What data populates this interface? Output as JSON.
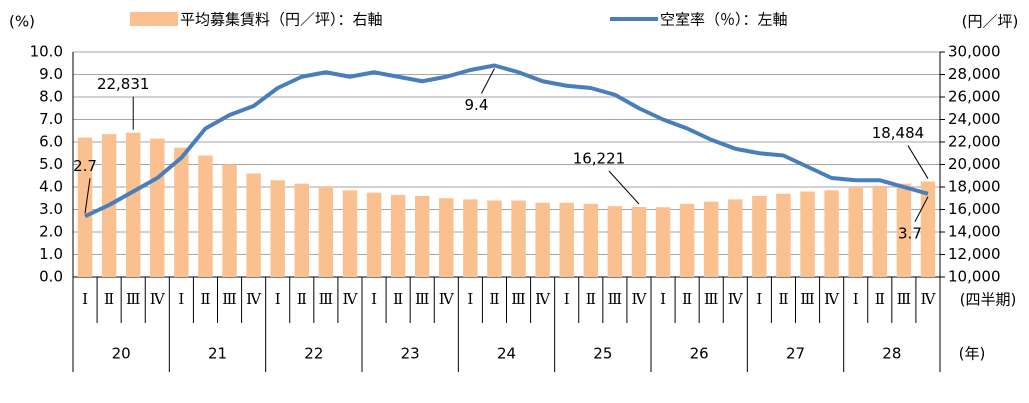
{
  "chart_data": {
    "type": "bar_line_combo",
    "legend": "top",
    "grid": true,
    "y_axis_label": "(%)",
    "y2_axis_label": "(円／坪)",
    "x_axis_label": "(四半期)",
    "group_axis_label": "(年)",
    "categories": [
      "Ⅰ",
      "Ⅱ",
      "Ⅲ",
      "Ⅳ",
      "Ⅰ",
      "Ⅱ",
      "Ⅲ",
      "Ⅳ",
      "Ⅰ",
      "Ⅱ",
      "Ⅲ",
      "Ⅳ",
      "Ⅰ",
      "Ⅱ",
      "Ⅲ",
      "Ⅳ",
      "Ⅰ",
      "Ⅱ",
      "Ⅲ",
      "Ⅳ",
      "Ⅰ",
      "Ⅱ",
      "Ⅲ",
      "Ⅳ",
      "Ⅰ",
      "Ⅱ",
      "Ⅲ",
      "Ⅳ",
      "Ⅰ",
      "Ⅱ",
      "Ⅲ",
      "Ⅳ",
      "Ⅰ",
      "Ⅱ",
      "Ⅲ",
      "Ⅳ"
    ],
    "groups": [
      "20",
      "21",
      "22",
      "23",
      "24",
      "25",
      "26",
      "27",
      "28"
    ],
    "ylim": [
      0,
      10
    ],
    "yticks": [
      {
        "value": 0,
        "label": "0.0"
      },
      {
        "value": 1,
        "label": "1.0"
      },
      {
        "value": 2,
        "label": "2.0"
      },
      {
        "value": 3,
        "label": "3.0"
      },
      {
        "value": 4,
        "label": "4.0"
      },
      {
        "value": 5,
        "label": "5.0"
      },
      {
        "value": 6,
        "label": "6.0"
      },
      {
        "value": 7,
        "label": "7.0"
      },
      {
        "value": 8,
        "label": "8.0"
      },
      {
        "value": 9,
        "label": "9.0"
      },
      {
        "value": 10,
        "label": "10.0"
      }
    ],
    "y2lim": [
      10000,
      30000
    ],
    "y2ticks": [
      {
        "value": 10000,
        "label": "10,000"
      },
      {
        "value": 12000,
        "label": "12,000"
      },
      {
        "value": 14000,
        "label": "14,000"
      },
      {
        "value": 16000,
        "label": "16,000"
      },
      {
        "value": 18000,
        "label": "18,000"
      },
      {
        "value": 20000,
        "label": "20,000"
      },
      {
        "value": 22000,
        "label": "22,000"
      },
      {
        "value": 24000,
        "label": "24,000"
      },
      {
        "value": 26000,
        "label": "26,000"
      },
      {
        "value": 28000,
        "label": "28,000"
      },
      {
        "value": 30000,
        "label": "30,000"
      }
    ],
    "series": [
      {
        "name": "平均募集賃料（円／坪）：右軸",
        "type": "bar",
        "axis": "y2",
        "color": "#fac090",
        "values": [
          22400,
          22700,
          22831,
          22300,
          21500,
          20800,
          20000,
          19200,
          18600,
          18300,
          18000,
          17700,
          17500,
          17300,
          17200,
          17000,
          16900,
          16800,
          16800,
          16600,
          16600,
          16500,
          16300,
          16221,
          16200,
          16500,
          16700,
          16900,
          17200,
          17400,
          17600,
          17700,
          18000,
          18100,
          18300,
          18484
        ],
        "value_labels": [
          null,
          null,
          "22,831",
          null,
          null,
          null,
          null,
          null,
          null,
          null,
          null,
          null,
          null,
          null,
          null,
          null,
          null,
          null,
          null,
          null,
          null,
          null,
          null,
          "16,221",
          null,
          null,
          null,
          null,
          null,
          null,
          null,
          null,
          null,
          null,
          null,
          "18,484"
        ]
      },
      {
        "name": "空室率（％）：左軸",
        "type": "line",
        "axis": "y",
        "color": "#4a7ebb",
        "values": [
          2.7,
          3.2,
          3.8,
          4.4,
          5.3,
          6.6,
          7.2,
          7.6,
          8.4,
          8.9,
          9.1,
          8.9,
          9.1,
          8.9,
          8.7,
          8.9,
          9.2,
          9.4,
          9.1,
          8.7,
          8.5,
          8.4,
          8.1,
          7.5,
          7.0,
          6.6,
          6.1,
          5.7,
          5.5,
          5.4,
          4.9,
          4.4,
          4.3,
          4.3,
          4.0,
          3.7
        ],
        "value_labels": [
          "2.7",
          null,
          null,
          null,
          null,
          null,
          null,
          null,
          null,
          null,
          null,
          null,
          null,
          null,
          null,
          null,
          null,
          "9.4",
          null,
          null,
          null,
          null,
          null,
          null,
          null,
          null,
          null,
          null,
          null,
          null,
          null,
          null,
          null,
          null,
          null,
          "3.7"
        ]
      }
    ]
  }
}
